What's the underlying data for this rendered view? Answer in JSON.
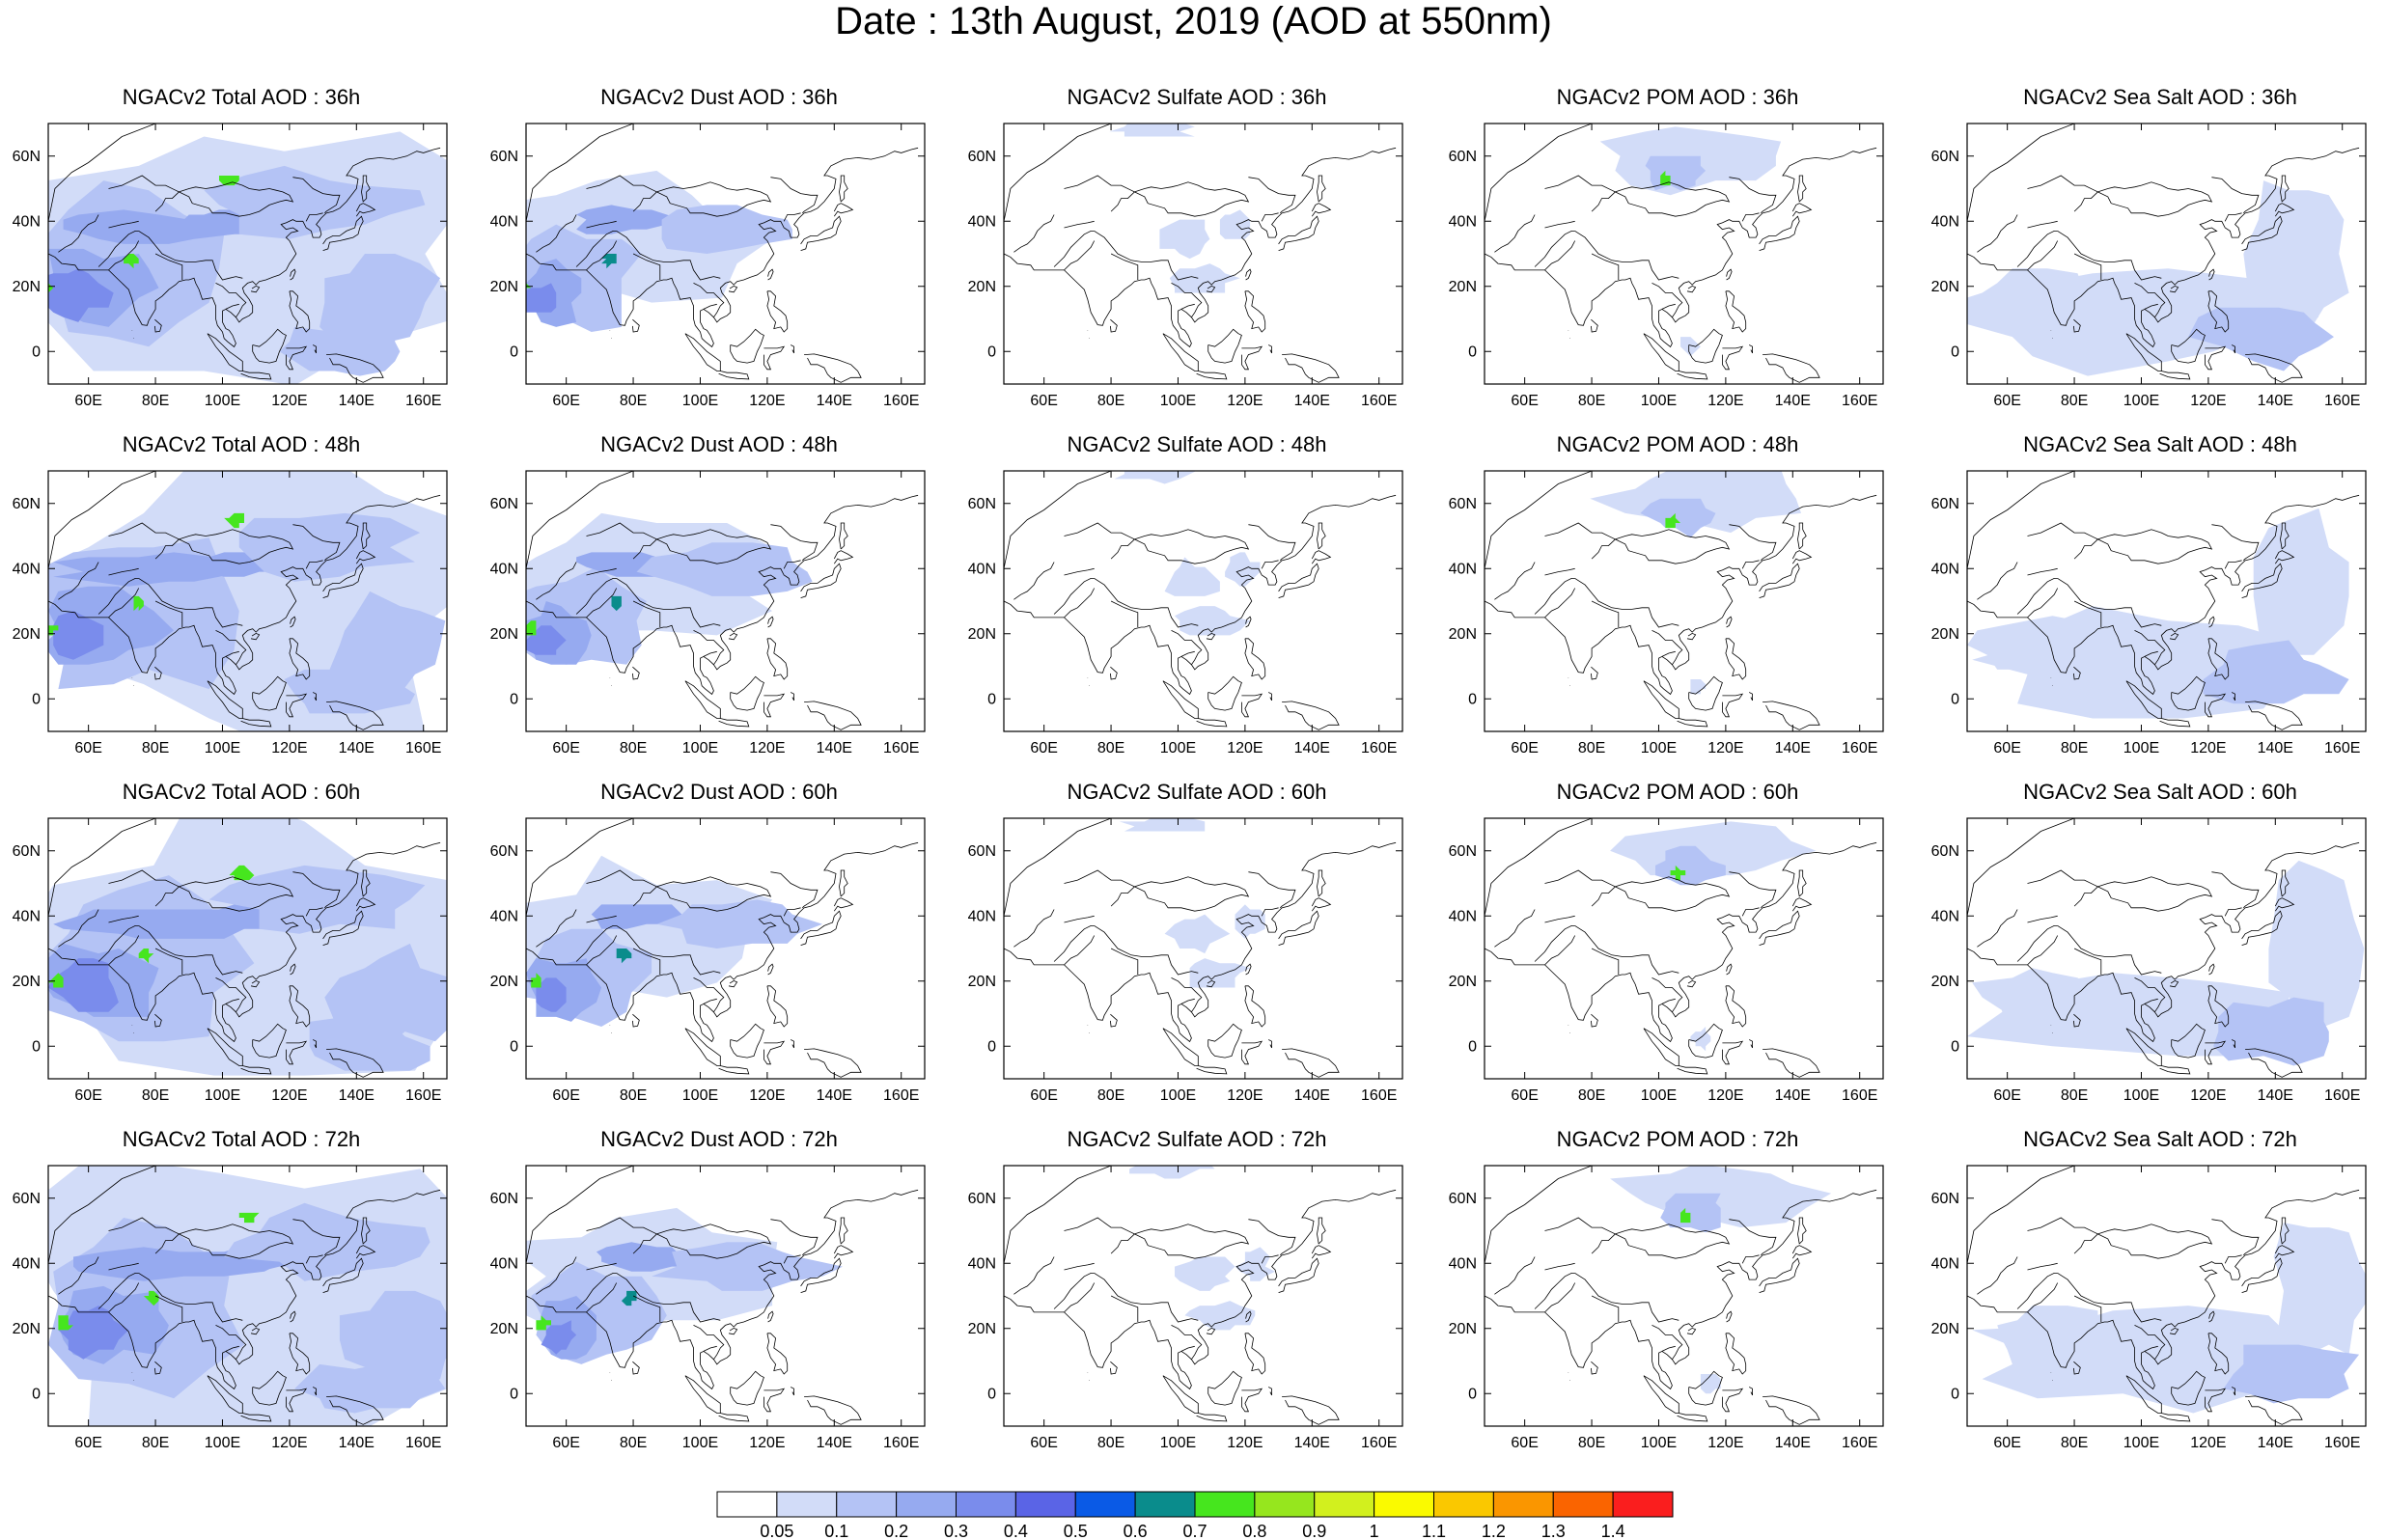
{
  "title": "Date : 13th August, 2019 (AOD at 550nm)",
  "lat_labels": [
    "60N",
    "40N",
    "20N",
    "0"
  ],
  "lon_labels": [
    "60E",
    "80E",
    "100E",
    "120E",
    "140E",
    "160E"
  ],
  "panel_titles": [
    [
      "NGACv2 Total AOD : 36h",
      "NGACv2 Dust AOD : 36h",
      "NGACv2 Sulfate AOD : 36h",
      "NGACv2 POM AOD : 36h",
      "NGACv2 Sea Salt AOD : 36h"
    ],
    [
      "NGACv2 Total AOD : 48h",
      "NGACv2 Dust AOD : 48h",
      "NGACv2 Sulfate AOD : 48h",
      "NGACv2 POM AOD : 48h",
      "NGACv2 Sea Salt AOD : 48h"
    ],
    [
      "NGACv2 Total AOD : 60h",
      "NGACv2 Dust AOD : 60h",
      "NGACv2 Sulfate AOD : 60h",
      "NGACv2 POM AOD : 60h",
      "NGACv2 Sea Salt AOD : 60h"
    ],
    [
      "NGACv2 Total AOD : 72h",
      "NGACv2 Dust AOD : 72h",
      "NGACv2 Sulfate AOD : 72h",
      "NGACv2 POM AOD : 72h",
      "NGACv2 Sea Salt  AOD : 72h"
    ]
  ],
  "colorbar": {
    "labels": [
      "0.05",
      "0.1",
      "0.2",
      "0.3",
      "0.4",
      "0.5",
      "0.6",
      "0.7",
      "0.8",
      "0.9",
      "1",
      "1.1",
      "1.2",
      "1.3",
      "1.4"
    ],
    "colors": [
      "#ffffff",
      "#d2dcf8",
      "#b4c3f5",
      "#96aaf0",
      "#7a8cec",
      "#5a64e6",
      "#0a5ae6",
      "#0a8c8c",
      "#46e61e",
      "#96e61e",
      "#d2f01e",
      "#fafa00",
      "#fac800",
      "#fa9600",
      "#fa6400",
      "#fa1e1e"
    ]
  },
  "colors": {
    "ocean_background": "#ffffff",
    "coastline": "#000000"
  }
}
